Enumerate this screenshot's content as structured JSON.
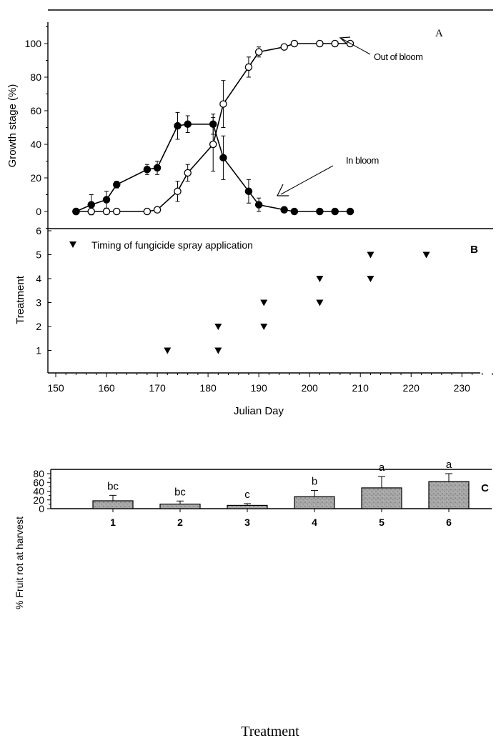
{
  "chart_data": [
    {
      "type": "line",
      "panel_label": "A",
      "ylabel": "Growth stage (%)",
      "ylim": [
        -10,
        110
      ],
      "xlim": [
        150,
        237
      ],
      "y_ticks": [
        "0",
        "20",
        "40",
        "60",
        "80",
        "100"
      ],
      "series": [
        {
          "name": "Out of bloom",
          "marker": "open-circle",
          "x": [
            154,
            157,
            160,
            162,
            168,
            170,
            174,
            176,
            181,
            183,
            188,
            190,
            195,
            197,
            202,
            205,
            208
          ],
          "y": [
            0,
            0,
            0,
            0,
            0,
            1,
            12,
            23,
            40,
            64,
            86,
            95,
            98,
            100,
            100,
            100,
            100
          ],
          "err": [
            0,
            0,
            0,
            0,
            0,
            1,
            6,
            5,
            16,
            14,
            6,
            3,
            1,
            0,
            0,
            0,
            0
          ]
        },
        {
          "name": "In bloom",
          "marker": "filled-circle",
          "x": [
            154,
            157,
            160,
            162,
            168,
            170,
            174,
            176,
            181,
            183,
            188,
            190,
            195,
            197,
            202,
            205,
            208
          ],
          "y": [
            0,
            4,
            7,
            16,
            25,
            26,
            51,
            52,
            52,
            32,
            12,
            4,
            1,
            0,
            0,
            0,
            0
          ],
          "err": [
            0,
            6,
            5,
            2,
            3,
            4,
            8,
            5,
            6,
            13,
            7,
            4,
            1,
            0,
            0,
            0,
            0
          ]
        }
      ],
      "annotations": [
        "Out of bloom",
        "In bloom"
      ]
    },
    {
      "type": "scatter",
      "panel_label": "B",
      "legend": "Timing of fungicide spray application",
      "xlabel": "Julian Day",
      "ylabel": "Treatment",
      "xlim": [
        150,
        237
      ],
      "ylim": [
        0,
        7
      ],
      "x_ticks": [
        "150",
        "160",
        "170",
        "180",
        "190",
        "200",
        "210",
        "220",
        "230"
      ],
      "y_ticks": [
        "1",
        "2",
        "3",
        "4",
        "5",
        "6"
      ],
      "points": [
        {
          "x": 172,
          "y": 1
        },
        {
          "x": 182,
          "y": 1
        },
        {
          "x": 182,
          "y": 2
        },
        {
          "x": 191,
          "y": 2
        },
        {
          "x": 191,
          "y": 3
        },
        {
          "x": 202,
          "y": 3
        },
        {
          "x": 202,
          "y": 4
        },
        {
          "x": 212,
          "y": 4
        },
        {
          "x": 212,
          "y": 5
        },
        {
          "x": 223,
          "y": 5
        }
      ]
    },
    {
      "type": "bar",
      "panel_label": "C",
      "xlabel": "Treatment",
      "ylabel": "% Fruit rot at harvest",
      "ylim": [
        0,
        90
      ],
      "y_ticks": [
        "0",
        "20",
        "40",
        "60",
        "80"
      ],
      "categories": [
        "1",
        "2",
        "3",
        "4",
        "5",
        "6"
      ],
      "values": [
        18,
        10.5,
        7.5,
        27.5,
        47.5,
        62
      ],
      "errors": [
        12.5,
        7,
        4,
        14,
        26,
        18
      ],
      "letters": [
        "bc",
        "bc",
        "c",
        "b",
        "a",
        "a"
      ]
    }
  ]
}
